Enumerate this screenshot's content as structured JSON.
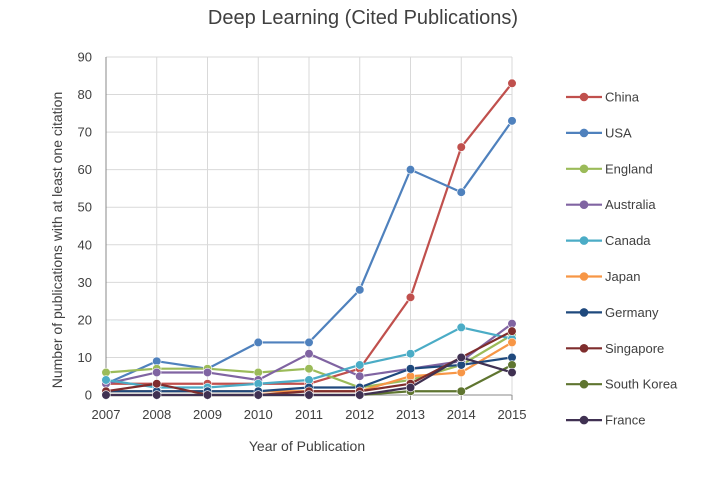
{
  "chart_data": {
    "type": "line",
    "title": "Deep Learning (Cited Publications)",
    "xlabel": "Year of Publication",
    "ylabel": "Number of publications with at least one citation",
    "categories": [
      "2007",
      "2008",
      "2009",
      "2010",
      "2011",
      "2012",
      "2013",
      "2014",
      "2015"
    ],
    "ylim": [
      0,
      90
    ],
    "yticks": [
      0,
      10,
      20,
      30,
      40,
      50,
      60,
      70,
      80,
      90
    ],
    "grid": true,
    "legend_position": "right",
    "series": [
      {
        "name": "China",
        "color": "#c0504d",
        "values": [
          3,
          3,
          3,
          3,
          3,
          7,
          26,
          66,
          83
        ]
      },
      {
        "name": "USA",
        "color": "#4f81bd",
        "values": [
          3,
          9,
          7,
          14,
          14,
          28,
          60,
          54,
          73
        ]
      },
      {
        "name": "England",
        "color": "#9bbb59",
        "values": [
          6,
          7,
          7,
          6,
          7,
          2,
          4,
          8,
          16
        ]
      },
      {
        "name": "Australia",
        "color": "#8064a2",
        "values": [
          3,
          6,
          6,
          4,
          11,
          5,
          7,
          9,
          19
        ]
      },
      {
        "name": "Canada",
        "color": "#4bacc6",
        "values": [
          4,
          2,
          2,
          3,
          4,
          8,
          11,
          18,
          15
        ]
      },
      {
        "name": "Japan",
        "color": "#f79646",
        "values": [
          1,
          1,
          1,
          1,
          1,
          1,
          5,
          6,
          14
        ]
      },
      {
        "name": "Germany",
        "color": "#1f497d",
        "values": [
          1,
          1,
          1,
          1,
          2,
          2,
          7,
          8,
          10
        ]
      },
      {
        "name": "Singapore",
        "color": "#7f2d2d",
        "values": [
          1,
          3,
          0,
          0,
          1,
          1,
          3,
          10,
          17
        ]
      },
      {
        "name": "South Korea",
        "color": "#5f7530",
        "values": [
          0,
          0,
          0,
          0,
          0,
          0,
          1,
          1,
          8
        ]
      },
      {
        "name": "France",
        "color": "#403152",
        "values": [
          0,
          0,
          0,
          0,
          0,
          0,
          2,
          10,
          6
        ]
      }
    ]
  }
}
